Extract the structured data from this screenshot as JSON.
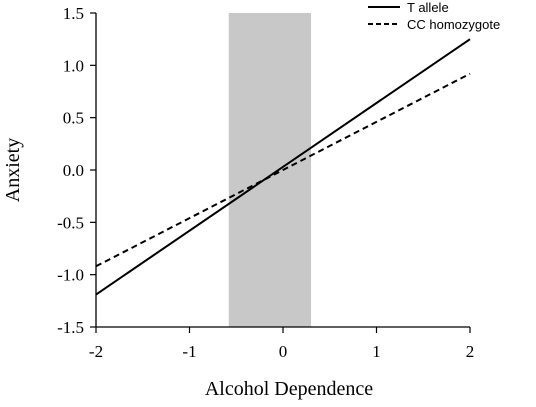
{
  "chart_data": {
    "type": "line",
    "title": "",
    "xlabel": "Alcohol Dependence",
    "ylabel": "Anxiety",
    "xlim": [
      -2,
      2
    ],
    "ylim": [
      -1.5,
      1.5
    ],
    "x_ticks": [
      -2,
      -1,
      0,
      1,
      2
    ],
    "x_tick_labels": [
      "-2",
      "-1",
      "0",
      "1",
      "2"
    ],
    "y_ticks": [
      -1.5,
      -1.0,
      -0.5,
      0.0,
      0.5,
      1.0,
      1.5
    ],
    "y_tick_labels": [
      "-1.5",
      "-1.0",
      "-0.5",
      "0.0",
      "0.5",
      "1.0",
      "1.5"
    ],
    "grid": false,
    "legend_position": "top-right",
    "shaded_region": {
      "x_start": -0.58,
      "x_end": 0.3,
      "color": "#c8c8c8"
    },
    "series": [
      {
        "name": "T allele",
        "style": "solid",
        "color": "#000000",
        "x": [
          -2,
          2
        ],
        "y": [
          -1.19,
          1.25
        ]
      },
      {
        "name": "CC homozygote",
        "style": "dashed",
        "color": "#000000",
        "x": [
          -2,
          2
        ],
        "y": [
          -0.92,
          0.92
        ]
      }
    ]
  }
}
